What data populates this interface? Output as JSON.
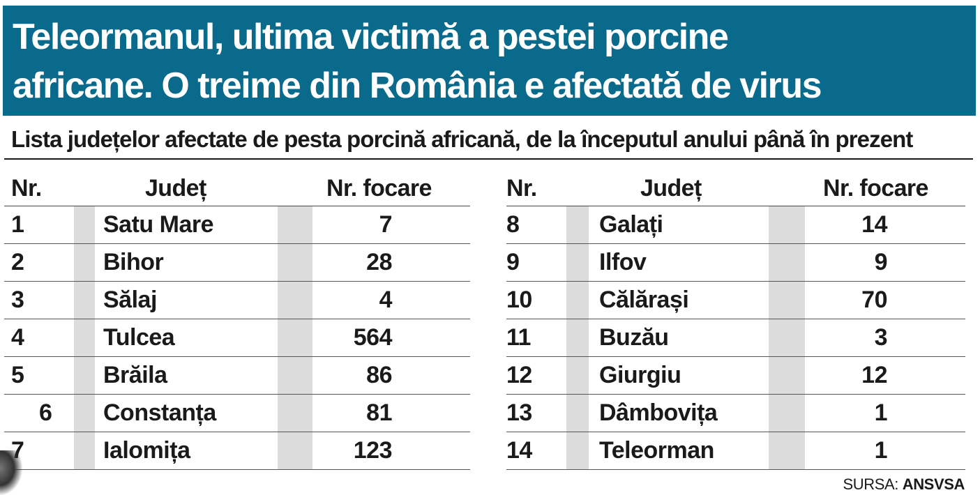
{
  "title": "Teleormanul, ultima victimă a pestei porcine\nafricane. O treime din România e afectată de virus",
  "subtitle": "Lista județelor afectate de pesta porcină africană, de la începutul anului până în prezent",
  "table_headers": {
    "nr": "Nr.",
    "judet": "Județ",
    "focare": "Nr. focare"
  },
  "left_rows": [
    {
      "nr": "1",
      "judet": "Satu Mare",
      "focare": "7"
    },
    {
      "nr": "2",
      "judet": "Bihor",
      "focare": "28"
    },
    {
      "nr": "3",
      "judet": "Sălaj",
      "focare": "4"
    },
    {
      "nr": "4",
      "judet": "Tulcea",
      "focare": "564"
    },
    {
      "nr": "5",
      "judet": "Brăila",
      "focare": "86"
    },
    {
      "nr": "6",
      "judet": "Constanța",
      "focare": "81"
    },
    {
      "nr": "7",
      "judet": "Ialomița",
      "focare": "123"
    }
  ],
  "right_rows": [
    {
      "nr": "8",
      "judet": "Galați",
      "focare": "14"
    },
    {
      "nr": "9",
      "judet": "Ilfov",
      "focare": "9"
    },
    {
      "nr": "10",
      "judet": "Călărași",
      "focare": "70"
    },
    {
      "nr": "11",
      "judet": "Buzău",
      "focare": "3"
    },
    {
      "nr": "12",
      "judet": "Giurgiu",
      "focare": "12"
    },
    {
      "nr": "13",
      "judet": "Dâmbovița",
      "focare": "1"
    },
    {
      "nr": "14",
      "judet": "Teleorman",
      "focare": "1"
    }
  ],
  "source": {
    "label": "SURSA:",
    "name": "ANSVSA"
  },
  "colors": {
    "banner": "#0a6a8c",
    "shade": "#dcdcdc",
    "text": "#1a1a1a"
  }
}
